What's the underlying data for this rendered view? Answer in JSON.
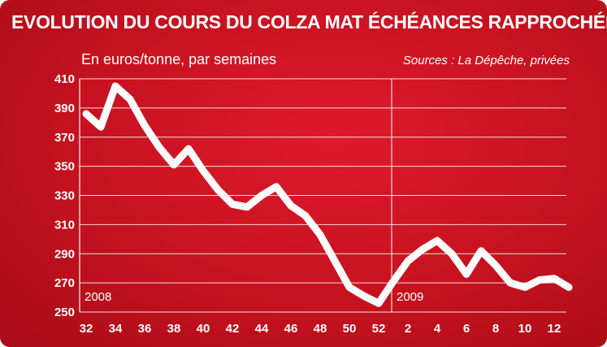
{
  "title": "EVOLUTION DU COURS DU COLZA MAT  ÉCHÉANCES RAPPROCHÉES",
  "subtitle": "En euros/tonne, par semaines",
  "sources": "Sources : La Dépêche, privées",
  "colors": {
    "background": "#c5121f",
    "line": "#ffffff",
    "grid": "#ffffff"
  },
  "chart_data": {
    "type": "line",
    "title": "EVOLUTION DU COURS DU COLZA MAT  ÉCHÉANCES RAPPROCHÉES",
    "ylabel": "En euros/tonne, par semaines",
    "xlabel": "",
    "ylim": [
      250,
      410
    ],
    "yticks": [
      250,
      270,
      290,
      310,
      330,
      350,
      370,
      390,
      410
    ],
    "x_tick_labels": [
      "32",
      "34",
      "36",
      "38",
      "40",
      "42",
      "44",
      "46",
      "48",
      "50",
      "52",
      "2",
      "4",
      "6",
      "8",
      "10",
      "12"
    ],
    "x_tick_index": [
      0,
      2,
      4,
      6,
      8,
      10,
      12,
      14,
      16,
      18,
      20,
      22,
      24,
      26,
      28,
      30,
      32
    ],
    "year_labels": [
      {
        "text": "2008",
        "at_index": 0
      },
      {
        "text": "2009",
        "at_index": 21
      }
    ],
    "year_divider_at_index": 21,
    "grid": true,
    "series": [
      {
        "x": [
          "32",
          "33",
          "34",
          "35",
          "36",
          "37",
          "38",
          "39",
          "40",
          "41",
          "42",
          "43",
          "44",
          "45",
          "46",
          "47",
          "48",
          "49",
          "50",
          "51",
          "52",
          "1",
          "2",
          "3",
          "4",
          "5",
          "6",
          "7",
          "8",
          "9",
          "10",
          "11",
          "12",
          "13"
        ],
        "values": [
          386,
          377,
          405,
          396,
          378,
          363,
          351,
          362,
          347,
          334,
          324,
          322,
          330,
          336,
          323,
          316,
          303,
          285,
          267,
          261,
          256,
          271,
          285,
          293,
          299,
          290,
          276,
          292,
          282,
          270,
          267,
          272,
          273,
          267
        ]
      }
    ]
  }
}
